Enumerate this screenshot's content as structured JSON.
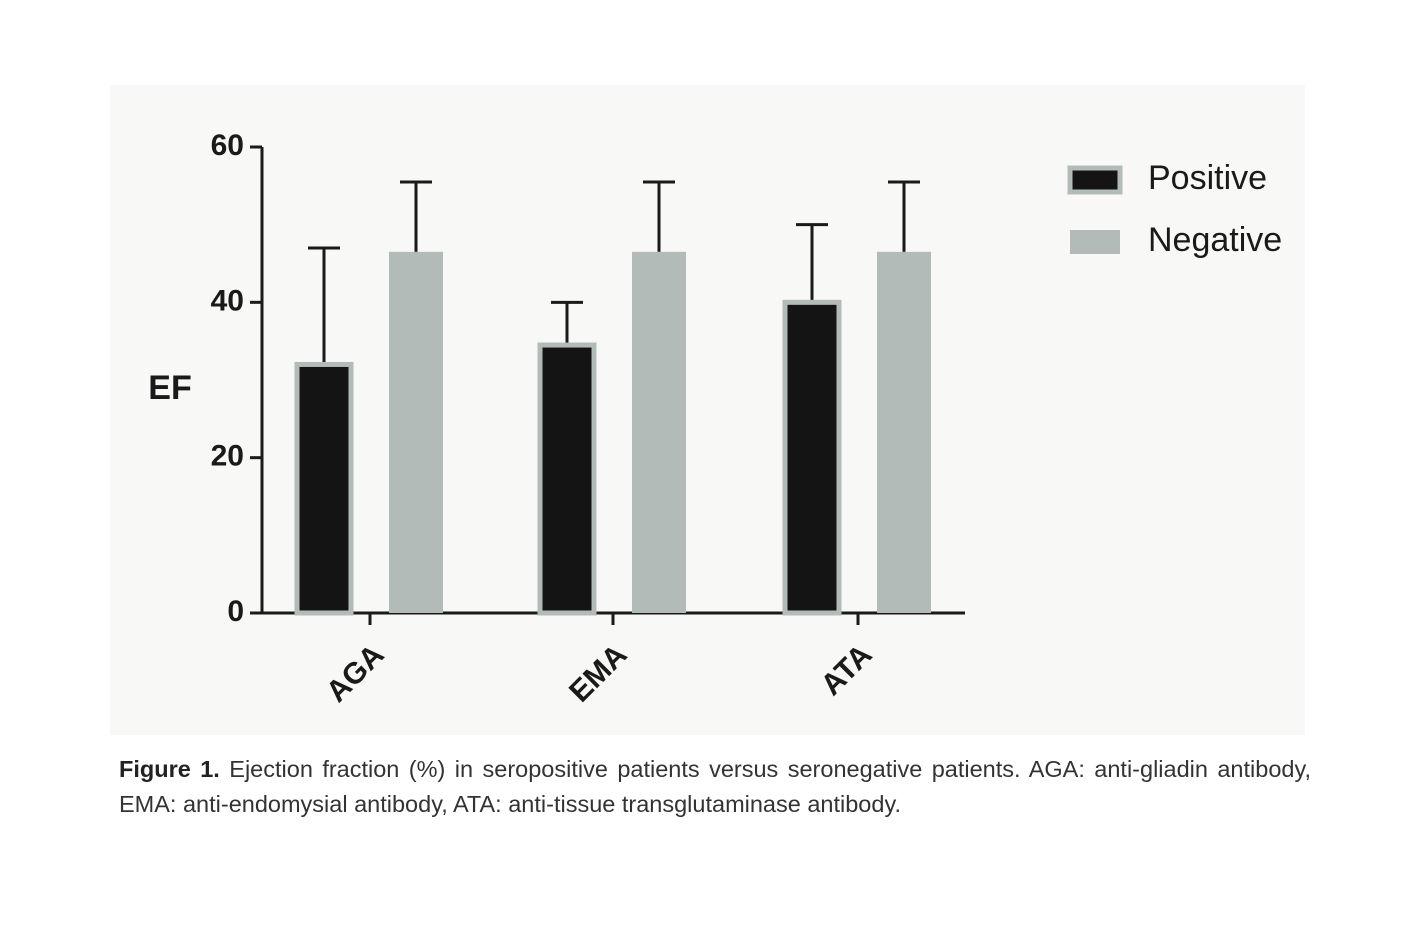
{
  "chart_data": {
    "type": "bar",
    "ylabel": "EF",
    "categories": [
      "AGA",
      "EMA",
      "ATA"
    ],
    "series": [
      {
        "name": "Positive",
        "color": "#141414",
        "values": [
          32,
          34.5,
          40
        ],
        "errors": [
          15,
          5.5,
          10
        ]
      },
      {
        "name": "Negative",
        "color": "#b3bbb8",
        "values": [
          46.5,
          46.5,
          46.5
        ],
        "errors": [
          9,
          9,
          9
        ]
      }
    ],
    "ylim": [
      0,
      60
    ],
    "yticks": [
      0,
      20,
      40,
      60
    ],
    "legend": "top-right"
  },
  "caption": {
    "label": "Figure 1.",
    "text": "Ejection fraction (%) in seropositive patients versus seronegative patients. AGA: anti-gliadin antibody, EMA: anti-endomysial antibody, ATA: anti-tissue transglutaminase antibody."
  }
}
